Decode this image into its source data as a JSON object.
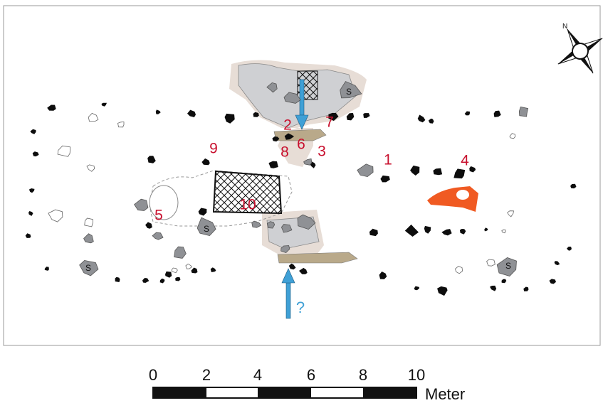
{
  "feature_numbers": [
    "1",
    "2",
    "3",
    "4",
    "5",
    "6",
    "7",
    "8",
    "9",
    "10"
  ],
  "stone_marks": [
    "S",
    "S",
    "S",
    "S"
  ],
  "arrow_note": "?",
  "compass": "N",
  "scale": {
    "labels": [
      "0",
      "2",
      "4",
      "6",
      "8",
      "10"
    ],
    "unit": "Meter"
  }
}
